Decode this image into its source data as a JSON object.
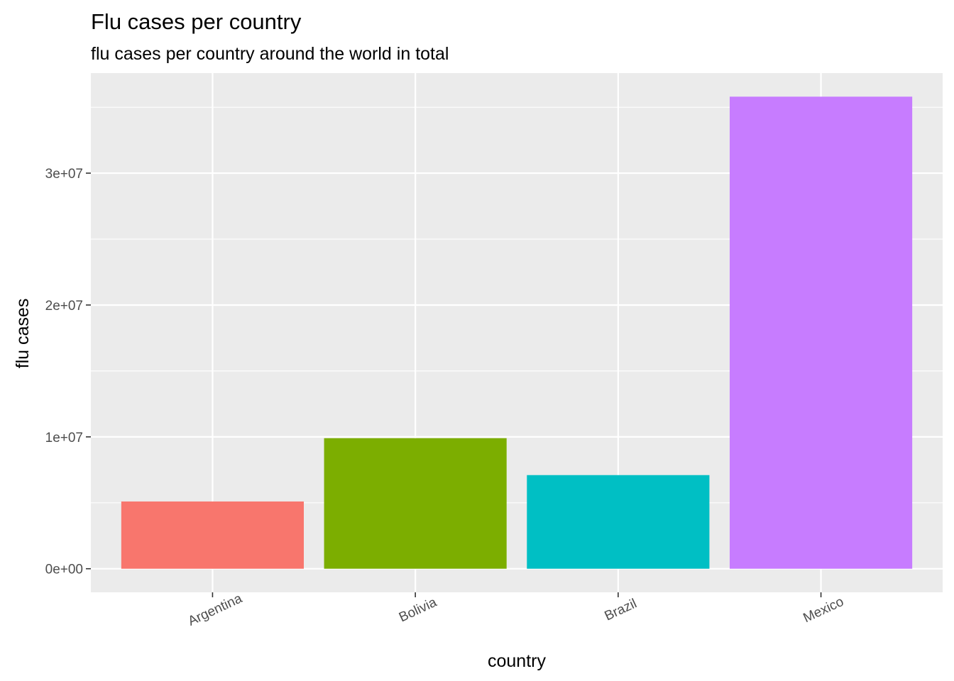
{
  "chart_data": {
    "type": "bar",
    "title": "Flu cases per country",
    "subtitle": "flu cases per country around the world in total",
    "xlabel": "country",
    "ylabel": "flu cases",
    "categories": [
      "Argentina",
      "Bolivia",
      "Brazil",
      "Mexico"
    ],
    "values": [
      5100000,
      9900000,
      7100000,
      35800000
    ],
    "colors": [
      "#F8766D",
      "#7CAE00",
      "#00BFC4",
      "#C77CFF"
    ],
    "y_ticks": [
      0,
      10000000,
      20000000,
      30000000
    ],
    "y_tick_labels": [
      "0e+00",
      "1e+07",
      "2e+07",
      "3e+07"
    ],
    "ylim": [
      -1790000,
      37590000
    ],
    "grid": true,
    "legend": "none",
    "panel_background": "#EBEBEB",
    "grid_color": "#FFFFFF"
  }
}
